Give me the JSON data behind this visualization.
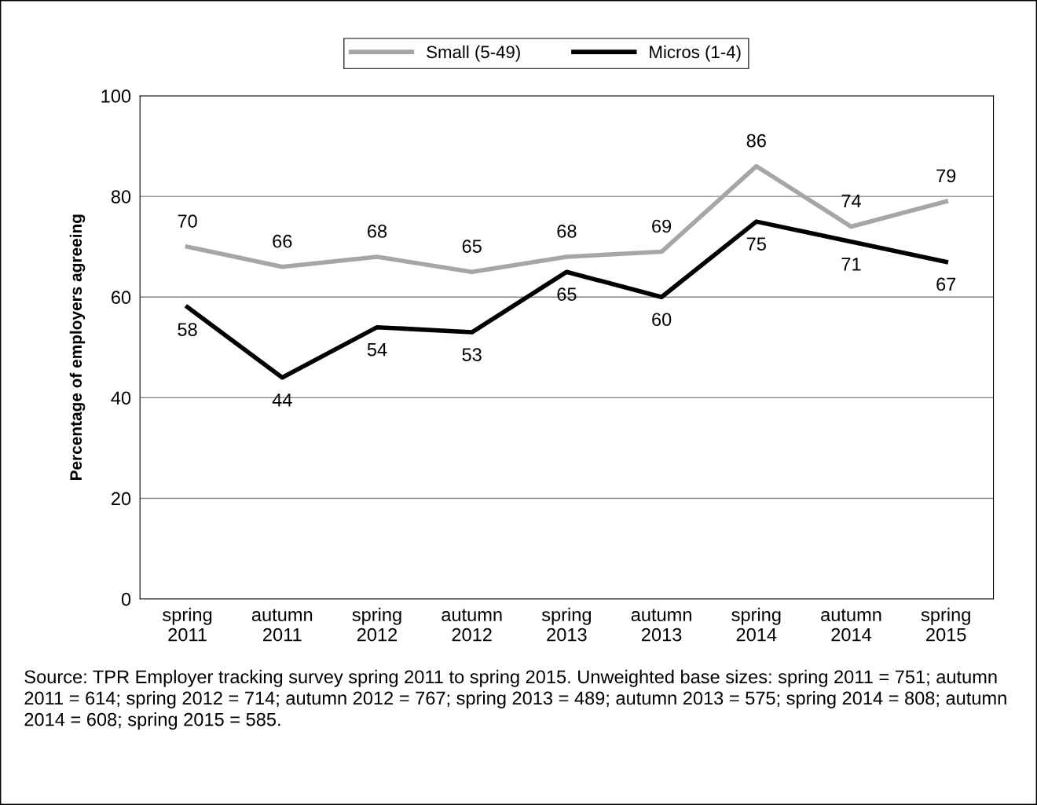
{
  "chart_data": {
    "type": "line",
    "categories": [
      "spring\n2011",
      "autumn\n2011",
      "spring\n2012",
      "autumn\n2012",
      "spring\n2013",
      "autumn\n2013",
      "spring\n2014",
      "autumn\n2014",
      "spring\n2015"
    ],
    "series": [
      {
        "name": "Small (5-49)",
        "color": "#a6a6a6",
        "values": [
          70,
          66,
          68,
          65,
          68,
          69,
          86,
          74,
          79
        ]
      },
      {
        "name": "Micros (1-4)",
        "color": "#000000",
        "values": [
          58,
          44,
          54,
          53,
          65,
          60,
          75,
          71,
          67
        ]
      }
    ],
    "ylabel": "Percentage of employers agreeing",
    "ylim": [
      0,
      100
    ],
    "yticks": [
      0,
      20,
      40,
      60,
      80,
      100
    ],
    "grid": "y",
    "legend": "top",
    "data_labels": true,
    "marker": "none",
    "line_style": "solid",
    "annotations": [
      "Source: TPR Employer tracking survey spring 2011 to spring 2015. Unweighted base sizes: spring 2011 = 751; autumn 2011 = 614; spring 2012 = 714; autumn 2012 = 767; spring 2013 = 489; autumn 2013 = 575; spring 2014 = 808; autumn 2014 = 608; spring 2015 = 585."
    ]
  }
}
